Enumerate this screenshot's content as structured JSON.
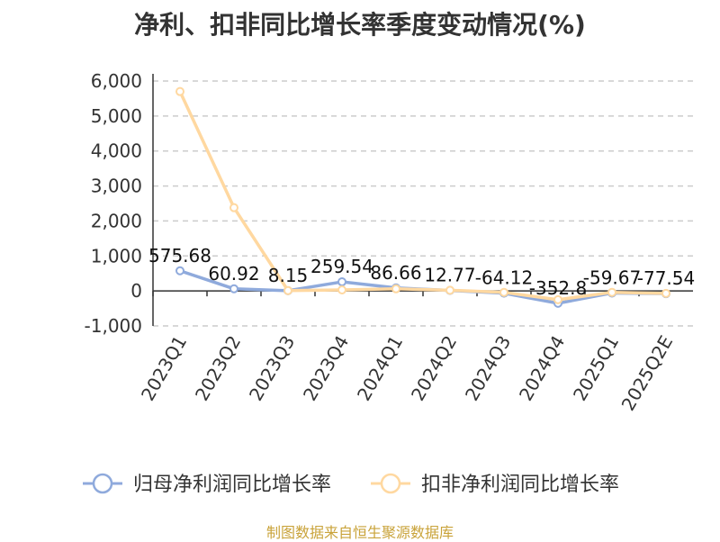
{
  "chart_data": {
    "type": "line",
    "title": "净利、扣非同比增长率季度变动情况(%)",
    "categories": [
      "2023Q1",
      "2023Q2",
      "2023Q3",
      "2023Q4",
      "2024Q1",
      "2024Q2",
      "2024Q3",
      "2024Q4",
      "2025Q1",
      "2025Q2E"
    ],
    "ylim": [
      -1000,
      6000
    ],
    "yticks": [
      -1000,
      0,
      1000,
      2000,
      3000,
      4000,
      5000,
      6000
    ],
    "ytick_labels": [
      "-1,000",
      "0",
      "1,000",
      "2,000",
      "3,000",
      "4,000",
      "5,000",
      "6,000"
    ],
    "grid": true,
    "legend_position": "bottom",
    "series": [
      {
        "name": "归母净利润同比增长率",
        "color": "#8faadc",
        "values": [
          575.68,
          60.92,
          8.15,
          259.54,
          86.66,
          12.77,
          -64.12,
          -352.8,
          -59.67,
          -77.54
        ],
        "labels": [
          "575.68",
          "60.92",
          "8.15",
          "259.54",
          "86.66",
          "12.77",
          "-64.12",
          "-352.8",
          "-59.67",
          "-77.54"
        ]
      },
      {
        "name": "扣非净利润同比增长率",
        "color": "#ffd8a0",
        "values": [
          5700,
          2380,
          10,
          30,
          60,
          20,
          -40,
          -250,
          -40,
          -70
        ]
      }
    ]
  },
  "source": "制图数据来自恒生聚源数据库"
}
